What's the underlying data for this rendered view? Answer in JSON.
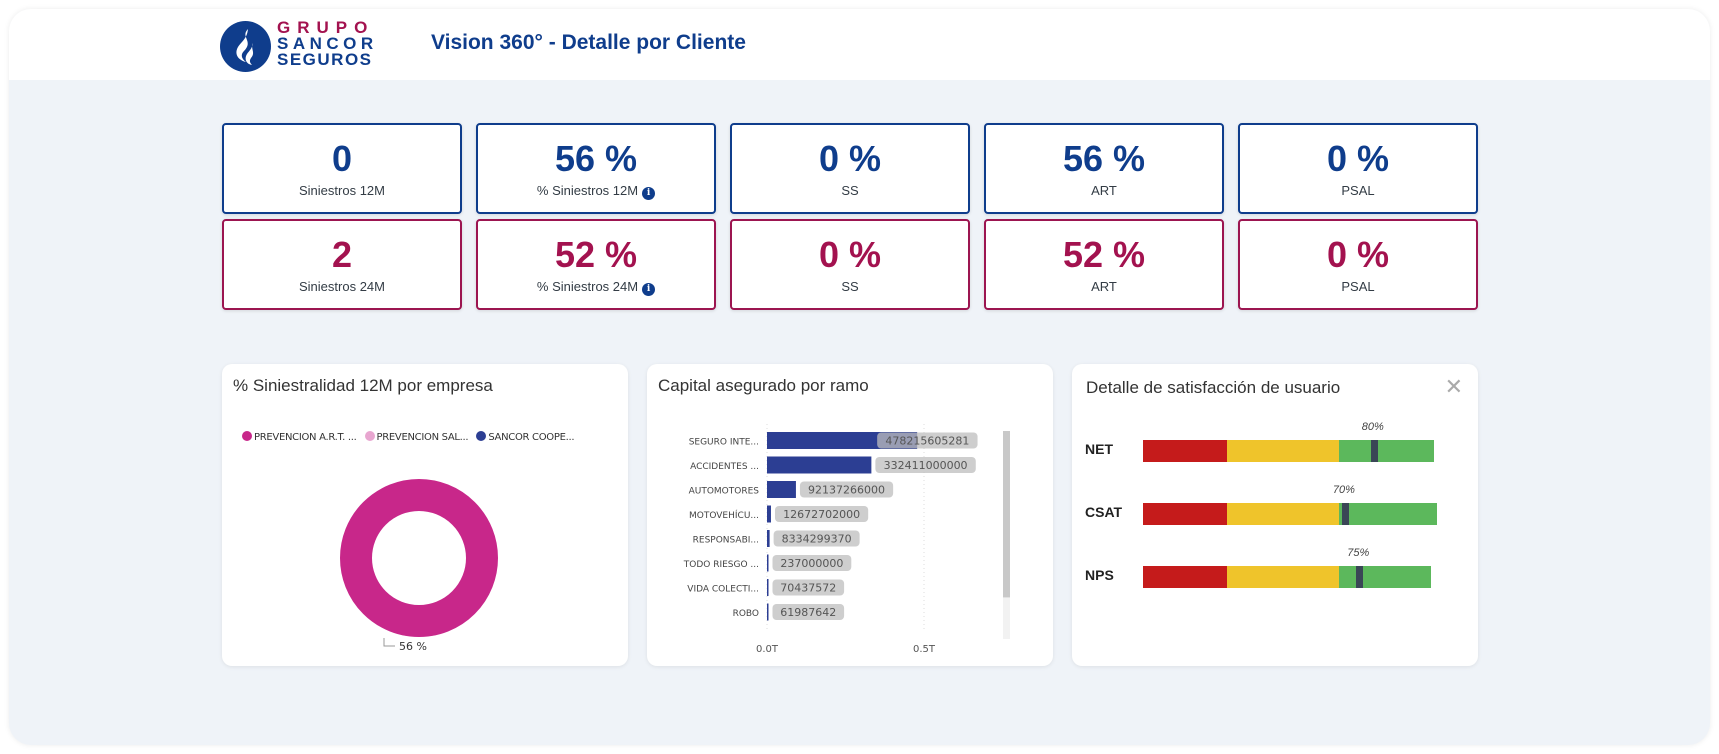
{
  "header": {
    "logo": {
      "line1": "GRUPO",
      "line2": "SANCOR",
      "line3": "SEGUROS",
      "icon": "flame-logo-icon"
    },
    "title": "Vision 360° - Detalle por Cliente"
  },
  "colors": {
    "primary_blue": "#0f3d8c",
    "primary_magenta": "#a3124f",
    "background": "#eff3f8",
    "donut_art": "#c8278a",
    "donut_psal": "#e8a6d0",
    "donut_sancor": "#2c3e93",
    "bar_fill": "#2c3e93",
    "gauge_red": "#c51b1b",
    "gauge_yellow": "#efc42b",
    "gauge_green": "#5cb85c",
    "gauge_marker": "#3a4656"
  },
  "kpis": {
    "row1": [
      {
        "value": "0",
        "label": "Siniestros 12M",
        "info": false
      },
      {
        "value": "56 %",
        "label": "% Siniestros 12M",
        "info": true
      },
      {
        "value": "0 %",
        "label": "SS",
        "info": false
      },
      {
        "value": "56 %",
        "label": "ART",
        "info": false
      },
      {
        "value": "0 %",
        "label": "PSAL",
        "info": false
      }
    ],
    "row2": [
      {
        "value": "2",
        "label": "Siniestros 24M",
        "info": false
      },
      {
        "value": "52 %",
        "label": "% Siniestros 24M",
        "info": true
      },
      {
        "value": "0 %",
        "label": "SS",
        "info": false
      },
      {
        "value": "52 %",
        "label": "ART",
        "info": false
      },
      {
        "value": "0 %",
        "label": "PSAL",
        "info": false
      }
    ],
    "info_glyph": "i"
  },
  "panels": {
    "donut": {
      "title": "% Siniestralidad 12M por empresa"
    },
    "bars": {
      "title": "Capital asegurado por ramo"
    },
    "satisfaction": {
      "title": "Detalle de satisfacción de usuario",
      "close_glyph": "✕"
    }
  },
  "chart_data": [
    {
      "type": "pie",
      "title": "% Siniestralidad 12M por empresa",
      "legend": [
        "PREVENCION  A.R.T. ...",
        "PREVENCION SAL...",
        "SANCOR COOPE..."
      ],
      "legend_position": "top-left",
      "slices": [
        {
          "name": "PREVENCION  A.R.T. ...",
          "value": 56,
          "label": "56 %"
        },
        {
          "name": "PREVENCION SAL...",
          "value": 0,
          "label": ""
        },
        {
          "name": "SANCOR COOPE...",
          "value": 0,
          "label": ""
        }
      ],
      "donut": true
    },
    {
      "type": "bar",
      "orientation": "horizontal",
      "title": "Capital asegurado por ramo",
      "categories": [
        "SEGURO INTE...",
        "ACCIDENTES ...",
        "AUTOMOTORES",
        "MOTOVEHÍCU...",
        "RESPONSABI...",
        "TODO RIESGO ...",
        "VIDA COLECTI...",
        "ROBO"
      ],
      "values": [
        478215605281,
        332411000000,
        92137266000,
        12672702000,
        8334299370,
        237000000,
        70437572,
        61987642
      ],
      "data_labels": [
        "478215605281",
        "332411000000",
        "92137266000",
        "12672702000",
        "8334299370",
        "237000000",
        "70437572",
        "61987642"
      ],
      "xticks": [
        {
          "value": 0,
          "label": "0.0T"
        },
        {
          "value": 500000000000,
          "label": "0.5T"
        }
      ],
      "xlim": [
        0,
        770000000000
      ],
      "grid": true,
      "scrollbar_visible_fraction": 0.8
    },
    {
      "type": "bar",
      "subtype": "bullet",
      "title": "Detalle de satisfacción de usuario",
      "bands": [
        {
          "name": "low",
          "from": 0,
          "to": 30
        },
        {
          "name": "mid",
          "from": 30,
          "to": 70
        },
        {
          "name": "high",
          "from": 70,
          "to": 100
        }
      ],
      "rows": [
        {
          "label": "NET",
          "value": 80,
          "display": "80%",
          "max": 104
        },
        {
          "label": "CSAT",
          "value": 70,
          "display": "70%",
          "max": 105
        },
        {
          "label": "NPS",
          "value": 75,
          "display": "75%",
          "max": 103
        }
      ]
    }
  ]
}
